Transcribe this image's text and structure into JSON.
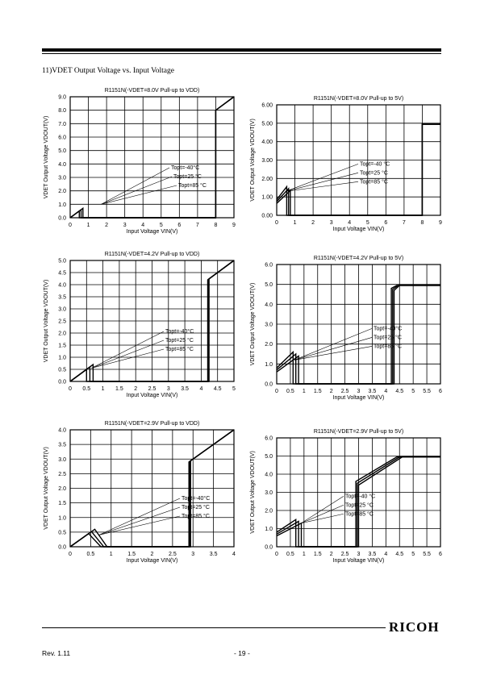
{
  "section_title": "11)VDET Output Voltage vs. Input Voltage",
  "footer": {
    "revision": "Rev. 1.11",
    "page": "- 19 -",
    "logo": "RICOH"
  },
  "chart_data": [
    {
      "type": "line",
      "title": "R1151N(-VDET=8.0V  Pull-up to VDD)",
      "xlabel": "Input Voltage VIN(V)",
      "ylabel": "VDET Output Voltage VDOUT(V)",
      "xlim": [
        0,
        9
      ],
      "ylim": [
        0,
        9
      ],
      "xticks": [
        "0",
        "1",
        "2",
        "3",
        "4",
        "5",
        "6",
        "7",
        "8",
        "9"
      ],
      "yticks": [
        "0.0",
        "1.0",
        "2.0",
        "3.0",
        "4.0",
        "5.0",
        "6.0",
        "7.0",
        "8.0",
        "9.0"
      ],
      "grid": true,
      "legend": [
        "Topt=-40°C",
        "Topt=25 °C",
        "Topt=85 °C"
      ],
      "series": [
        {
          "name": "Topt=-40°C",
          "x": [
            0,
            0.45,
            0.5,
            0.5,
            8.0,
            8.0,
            9.0
          ],
          "y": [
            0,
            0.45,
            0.5,
            0,
            0,
            8.0,
            9.0
          ]
        },
        {
          "name": "Topt=25 °C",
          "x": [
            0,
            0.55,
            0.6,
            0.6,
            8.0,
            8.0,
            9.0
          ],
          "y": [
            0,
            0.55,
            0.6,
            0,
            0,
            8.0,
            9.0
          ]
        },
        {
          "name": "Topt=85 °C",
          "x": [
            0,
            0.65,
            0.7,
            0.7,
            8.0,
            8.0,
            9.0
          ],
          "y": [
            0,
            0.65,
            0.7,
            0,
            0,
            8.0,
            9.0
          ]
        }
      ]
    },
    {
      "type": "line",
      "title": "R1151N(-VDET=8.0V Pull-up to 5V)",
      "xlabel": "Input Voltage VIN(V)",
      "ylabel": "VDET Output Voltage VDOUT(V)",
      "xlim": [
        0,
        9
      ],
      "ylim": [
        0,
        6
      ],
      "xticks": [
        "0",
        "1",
        "2",
        "3",
        "4",
        "5",
        "6",
        "7",
        "8",
        "9"
      ],
      "yticks": [
        "0.00",
        "1.00",
        "2.00",
        "3.00",
        "4.00",
        "5.00",
        "6.00"
      ],
      "grid": true,
      "legend": [
        "Topt=-40 °C",
        "Topt=25 °C",
        "Topt=85 °C"
      ],
      "series": [
        {
          "name": "Topt=-40 °C",
          "x": [
            0,
            0.55,
            0.55,
            8.0,
            8.0,
            9.0
          ],
          "y": [
            0.85,
            1.55,
            0,
            0,
            4.95,
            4.95
          ]
        },
        {
          "name": "Topt=25 °C",
          "x": [
            0,
            0.65,
            0.65,
            8.0,
            8.0,
            9.0
          ],
          "y": [
            0.75,
            1.45,
            0,
            0,
            4.95,
            4.95
          ]
        },
        {
          "name": "Topt=85 °C",
          "x": [
            0,
            0.75,
            0.75,
            8.0,
            8.0,
            9.0
          ],
          "y": [
            0.65,
            1.35,
            0,
            0,
            4.95,
            4.95
          ]
        }
      ]
    },
    {
      "type": "line",
      "title": "R1151N(-VDET=4.2V Pull-up to VDD)",
      "xlabel": "Input Voltage VIN(V)",
      "ylabel": "VDET Output Voltage VDOUT(V)",
      "xlim": [
        0,
        5
      ],
      "ylim": [
        0,
        5
      ],
      "xticks": [
        "0",
        "0.5",
        "1",
        "1.5",
        "2",
        "2.5",
        "3",
        "3.5",
        "4",
        "4.5",
        "5"
      ],
      "yticks": [
        "0.0",
        "0.5",
        "1.0",
        "1.5",
        "2.0",
        "2.5",
        "3.0",
        "3.5",
        "4.0",
        "4.5",
        "5.0"
      ],
      "grid": true,
      "legend": [
        "Topt=-40°C",
        "Topt=25 °C",
        "Topt=85 °C"
      ],
      "series": [
        {
          "name": "Topt=-40°C",
          "x": [
            0,
            0.5,
            0.5,
            4.2,
            4.2,
            5.0
          ],
          "y": [
            0,
            0.5,
            0,
            0,
            4.2,
            5.0
          ]
        },
        {
          "name": "Topt=25 °C",
          "x": [
            0,
            0.6,
            0.6,
            4.22,
            4.22,
            5.0
          ],
          "y": [
            0,
            0.6,
            0,
            0,
            4.22,
            5.0
          ]
        },
        {
          "name": "Topt=85 °C",
          "x": [
            0,
            0.7,
            0.7,
            4.24,
            4.24,
            5.0
          ],
          "y": [
            0,
            0.7,
            0,
            0,
            4.24,
            5.0
          ]
        }
      ]
    },
    {
      "type": "line",
      "title": "R1151N(-VDET=4.2V Pull-up to 5V)",
      "xlabel": "Input Voltage VIN(V)",
      "ylabel": "VDET Output Voltage VDOUT(V)",
      "xlim": [
        0,
        6
      ],
      "ylim": [
        0,
        6
      ],
      "xticks": [
        "0",
        "0.5",
        "1",
        "1.5",
        "2",
        "2.5",
        "3",
        "3.5",
        "4",
        "4.5",
        "5",
        "5.5",
        "6"
      ],
      "yticks": [
        "0.0",
        "1.0",
        "2.0",
        "3.0",
        "4.0",
        "5.0",
        "6.0"
      ],
      "grid": true,
      "legend": [
        "Topt=-40°C",
        "Topt=25 °C",
        "Topt=85 °C"
      ],
      "series": [
        {
          "name": "Topt=-40°C",
          "x": [
            0,
            0.6,
            0.6,
            4.2,
            4.2,
            4.4,
            6.0
          ],
          "y": [
            0.8,
            1.6,
            0,
            0,
            4.8,
            4.95,
            4.95
          ]
        },
        {
          "name": "Topt=25 °C",
          "x": [
            0,
            0.7,
            0.7,
            4.25,
            4.25,
            4.45,
            6.0
          ],
          "y": [
            0.7,
            1.5,
            0,
            0,
            4.75,
            4.95,
            4.95
          ]
        },
        {
          "name": "Topt=85 °C",
          "x": [
            0,
            0.8,
            0.8,
            4.3,
            4.3,
            4.5,
            6.0
          ],
          "y": [
            0.6,
            1.4,
            0,
            0,
            4.7,
            4.95,
            4.95
          ]
        }
      ]
    },
    {
      "type": "line",
      "title": "R1151N(-VDET=2.9V Pull-up to VDD)",
      "xlabel": "Input Voltage VIN(V)",
      "ylabel": "VDET Output Voltage VDOUT(V)",
      "xlim": [
        0,
        4
      ],
      "ylim": [
        0,
        4
      ],
      "xticks": [
        "0",
        "0.5",
        "1",
        "1.5",
        "2",
        "2.5",
        "3",
        "3.5",
        "4"
      ],
      "yticks": [
        "0.0",
        "0.5",
        "1.0",
        "1.5",
        "2.0",
        "2.5",
        "3.0",
        "3.5",
        "4.0"
      ],
      "grid": true,
      "legend": [
        "Topt=-40°C",
        "Topt=25 °C",
        "Topt=85 °C"
      ],
      "series": [
        {
          "name": "Topt=-40°C",
          "x": [
            0,
            0.45,
            0.75,
            2.9,
            2.9,
            4.0
          ],
          "y": [
            0,
            0.45,
            0,
            0,
            2.9,
            4.0
          ]
        },
        {
          "name": "Topt=25 °C",
          "x": [
            0,
            0.52,
            0.82,
            2.92,
            2.92,
            4.0
          ],
          "y": [
            0,
            0.52,
            0,
            0,
            2.92,
            4.0
          ]
        },
        {
          "name": "Topt=85 °C",
          "x": [
            0,
            0.6,
            0.9,
            2.94,
            2.94,
            4.0
          ],
          "y": [
            0,
            0.6,
            0,
            0,
            2.94,
            4.0
          ]
        }
      ]
    },
    {
      "type": "line",
      "title": "R1151N(-VDET=2.9V Pull-up to 5V)",
      "xlabel": "Input Voltage VIN(V)",
      "ylabel": "VDET Output Voltage VDOUT(V)",
      "xlim": [
        0,
        6
      ],
      "ylim": [
        0,
        6
      ],
      "xticks": [
        "0",
        "0.5",
        "1",
        "1.5",
        "2",
        "2.5",
        "3",
        "3.5",
        "4",
        "4.5",
        "5",
        "5.5",
        "6"
      ],
      "yticks": [
        "0.0",
        "1.0",
        "2.0",
        "3.0",
        "4.0",
        "5.0",
        "6.0"
      ],
      "grid": true,
      "legend": [
        "Topt=-40 °C",
        "Topt=25 °C",
        "Topt=85 °C"
      ],
      "series": [
        {
          "name": "Topt=-40 °C",
          "x": [
            0,
            0.7,
            0.7,
            2.9,
            2.9,
            4.4,
            6.0
          ],
          "y": [
            0.8,
            1.5,
            0,
            0,
            3.6,
            4.95,
            4.95
          ]
        },
        {
          "name": "Topt=25 °C",
          "x": [
            0,
            0.8,
            0.8,
            2.95,
            2.95,
            4.5,
            6.0
          ],
          "y": [
            0.7,
            1.4,
            0,
            0,
            3.5,
            4.95,
            4.95
          ]
        },
        {
          "name": "Topt=85 °C",
          "x": [
            0,
            0.9,
            0.9,
            3.0,
            3.0,
            4.6,
            6.0
          ],
          "y": [
            0.6,
            1.3,
            0,
            0,
            3.4,
            4.95,
            4.95
          ]
        }
      ]
    }
  ]
}
